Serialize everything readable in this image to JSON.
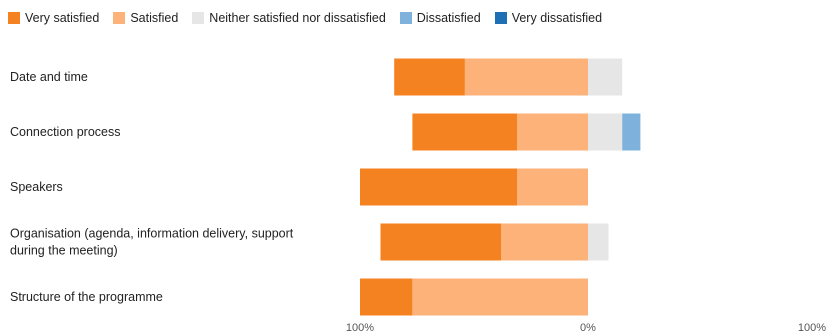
{
  "chart_data": {
    "type": "bar",
    "orientation": "horizontal",
    "stacked": true,
    "diverging": true,
    "categories": [
      "Date and time",
      "Connection process",
      "Speakers",
      "Organisation (agenda, information delivery, support during the meeting)",
      "Structure of the programme"
    ],
    "category_lines": [
      [
        "Date and time"
      ],
      [
        "Connection process"
      ],
      [
        "Speakers"
      ],
      [
        "Organisation (agenda, information delivery, support",
        "during the meeting)"
      ],
      [
        "Structure of the programme"
      ]
    ],
    "series": [
      {
        "name": "Very satisfied",
        "color": "#F58220",
        "values": [
          31,
          46,
          69,
          53,
          23
        ]
      },
      {
        "name": "Satisfied",
        "color": "#FDB27A",
        "values": [
          54,
          31,
          31,
          38,
          77
        ]
      },
      {
        "name": "Neither satisfied nor dissatisfied",
        "color": "#E6E6E6",
        "values": [
          15,
          15,
          0,
          9,
          0
        ]
      },
      {
        "name": "Dissatisfied",
        "color": "#7EB1DC",
        "values": [
          0,
          8,
          0,
          0,
          0
        ]
      },
      {
        "name": "Very dissatisfied",
        "color": "#1F6FB4",
        "values": [
          0,
          0,
          0,
          0,
          0
        ]
      }
    ],
    "xticks": [
      "100%",
      "0%",
      "100%"
    ],
    "xlim": [
      -100,
      100
    ],
    "legend_position": "top-left",
    "grid": false
  }
}
